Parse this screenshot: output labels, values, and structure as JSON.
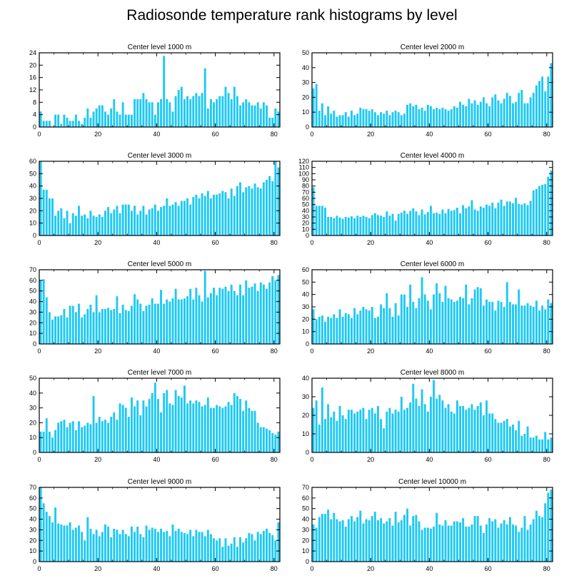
{
  "figure": {
    "title": "Radiosonde temperature rank histograms by level",
    "bar_color": "#1ec8f5"
  },
  "chart_data": [
    {
      "type": "bar",
      "title": "Center level 1000 m",
      "xlim": [
        0,
        82
      ],
      "ylim": [
        0,
        24
      ],
      "xticks": [
        0,
        20,
        40,
        60,
        80
      ],
      "yticks": [
        0,
        4,
        8,
        12,
        16,
        20,
        24
      ],
      "values": [
        5,
        2,
        2,
        2,
        0,
        4,
        4,
        1,
        4,
        3,
        2,
        2,
        4,
        2,
        1,
        3,
        6,
        3,
        5,
        6,
        7,
        7,
        5,
        4,
        6,
        9,
        5,
        4,
        8,
        4,
        4,
        4,
        9,
        9,
        9,
        11,
        9,
        8,
        8,
        4,
        8,
        9,
        23,
        9,
        8,
        5,
        10,
        12,
        13,
        9,
        10,
        9,
        10,
        11,
        10,
        11,
        19,
        6,
        9,
        8,
        9,
        10,
        10,
        13,
        11,
        9,
        13,
        10,
        7,
        8,
        9,
        8,
        7,
        7,
        8,
        6,
        8,
        7,
        3,
        3,
        6,
        5
      ]
    },
    {
      "type": "bar",
      "title": "Center level 2000 m",
      "xlim": [
        0,
        82
      ],
      "ylim": [
        0,
        50
      ],
      "xticks": [
        0,
        20,
        40,
        60,
        80
      ],
      "yticks": [
        0,
        10,
        20,
        30,
        40,
        50
      ],
      "values": [
        26,
        29,
        11,
        16,
        8,
        14,
        9,
        11,
        7,
        8,
        8,
        10,
        7,
        11,
        8,
        9,
        13,
        12,
        12,
        11,
        12,
        10,
        8,
        10,
        9,
        11,
        8,
        10,
        11,
        10,
        8,
        9,
        15,
        16,
        14,
        15,
        12,
        13,
        11,
        15,
        14,
        12,
        13,
        12,
        13,
        12,
        11,
        12,
        14,
        13,
        17,
        15,
        14,
        19,
        16,
        18,
        15,
        17,
        20,
        16,
        14,
        20,
        22,
        18,
        16,
        19,
        23,
        21,
        16,
        17,
        23,
        25,
        16,
        16,
        20,
        23,
        28,
        31,
        34,
        24,
        34,
        43
      ]
    },
    {
      "type": "bar",
      "title": "Center level 3000 m",
      "xlim": [
        0,
        82
      ],
      "ylim": [
        0,
        60
      ],
      "xticks": [
        0,
        20,
        40,
        60,
        80
      ],
      "yticks": [
        0,
        10,
        20,
        30,
        40,
        50,
        60
      ],
      "values": [
        60,
        37,
        37,
        30,
        30,
        16,
        20,
        22,
        14,
        20,
        10,
        18,
        16,
        24,
        16,
        17,
        14,
        20,
        16,
        15,
        17,
        15,
        20,
        23,
        18,
        21,
        24,
        18,
        25,
        25,
        25,
        20,
        24,
        17,
        20,
        24,
        17,
        21,
        22,
        25,
        20,
        23,
        24,
        30,
        24,
        25,
        27,
        24,
        28,
        28,
        30,
        25,
        31,
        33,
        30,
        34,
        32,
        36,
        30,
        33,
        33,
        34,
        36,
        35,
        30,
        38,
        32,
        40,
        43,
        35,
        39,
        40,
        38,
        42,
        39,
        38,
        43,
        45,
        48,
        44,
        60,
        55
      ]
    },
    {
      "type": "bar",
      "title": "Center level 4000 m",
      "xlim": [
        0,
        82
      ],
      "ylim": [
        0,
        120
      ],
      "xticks": [
        0,
        20,
        40,
        60,
        80
      ],
      "yticks": [
        0,
        10,
        20,
        30,
        40,
        50,
        60,
        70,
        80,
        90,
        100,
        110,
        120
      ],
      "values": [
        78,
        48,
        48,
        48,
        45,
        30,
        30,
        28,
        32,
        29,
        27,
        30,
        29,
        31,
        28,
        32,
        30,
        32,
        30,
        28,
        33,
        36,
        33,
        32,
        30,
        39,
        32,
        35,
        24,
        35,
        37,
        40,
        35,
        40,
        44,
        39,
        33,
        42,
        34,
        38,
        48,
        36,
        37,
        35,
        42,
        36,
        43,
        40,
        41,
        45,
        36,
        49,
        44,
        47,
        57,
        42,
        40,
        47,
        45,
        50,
        48,
        53,
        44,
        53,
        58,
        48,
        55,
        55,
        52,
        61,
        51,
        50,
        52,
        49,
        56,
        73,
        75,
        80,
        82,
        83,
        95,
        105
      ]
    },
    {
      "type": "bar",
      "title": "Center level 5000 m",
      "xlim": [
        0,
        82
      ],
      "ylim": [
        0,
        70
      ],
      "xticks": [
        0,
        20,
        40,
        60,
        80
      ],
      "yticks": [
        0,
        10,
        20,
        30,
        40,
        50,
        60,
        70
      ],
      "values": [
        60,
        61,
        44,
        30,
        23,
        26,
        26,
        27,
        33,
        25,
        36,
        36,
        30,
        38,
        25,
        28,
        33,
        37,
        30,
        46,
        30,
        33,
        33,
        34,
        32,
        33,
        45,
        29,
        37,
        32,
        31,
        36,
        47,
        42,
        38,
        31,
        36,
        37,
        43,
        38,
        38,
        51,
        38,
        42,
        40,
        43,
        52,
        42,
        42,
        43,
        45,
        52,
        42,
        53,
        46,
        40,
        69,
        44,
        48,
        53,
        46,
        53,
        52,
        54,
        50,
        56,
        50,
        46,
        56,
        46,
        60,
        53,
        54,
        57,
        50,
        58,
        56,
        52,
        58,
        64,
        60,
        65
      ]
    },
    {
      "type": "bar",
      "title": "Center level 6000 m",
      "xlim": [
        0,
        82
      ],
      "ylim": [
        0,
        60
      ],
      "xticks": [
        0,
        20,
        40,
        60,
        80
      ],
      "yticks": [
        0,
        10,
        20,
        30,
        40,
        50,
        60
      ],
      "values": [
        28,
        20,
        22,
        23,
        18,
        22,
        21,
        24,
        21,
        28,
        22,
        25,
        24,
        21,
        29,
        24,
        27,
        30,
        28,
        27,
        30,
        21,
        22,
        32,
        29,
        41,
        29,
        22,
        33,
        23,
        40,
        40,
        30,
        48,
        34,
        29,
        37,
        54,
        40,
        35,
        28,
        40,
        49,
        41,
        34,
        47,
        37,
        36,
        34,
        35,
        38,
        37,
        48,
        32,
        37,
        44,
        46,
        45,
        31,
        36,
        34,
        34,
        27,
        35,
        34,
        30,
        50,
        34,
        32,
        32,
        44,
        31,
        31,
        33,
        31,
        30,
        35,
        27,
        31,
        28,
        36,
        33
      ]
    },
    {
      "type": "bar",
      "title": "Center level 7000 m",
      "xlim": [
        0,
        82
      ],
      "ylim": [
        0,
        50
      ],
      "xticks": [
        0,
        20,
        40,
        60,
        80
      ],
      "yticks": [
        0,
        10,
        20,
        30,
        40,
        50
      ],
      "values": [
        14,
        14,
        23,
        14,
        10,
        15,
        20,
        21,
        22,
        17,
        20,
        21,
        15,
        21,
        17,
        18,
        20,
        19,
        38,
        20,
        24,
        21,
        22,
        20,
        24,
        27,
        22,
        33,
        32,
        30,
        24,
        37,
        31,
        35,
        25,
        35,
        31,
        36,
        40,
        47,
        36,
        27,
        40,
        42,
        33,
        32,
        42,
        38,
        37,
        45,
        33,
        35,
        33,
        35,
        34,
        31,
        32,
        37,
        30,
        30,
        32,
        31,
        30,
        31,
        34,
        32,
        40,
        38,
        36,
        28,
        35,
        30,
        28,
        28,
        20,
        17,
        17,
        16,
        15,
        13,
        12,
        14
      ]
    },
    {
      "type": "bar",
      "title": "Center level 8000 m",
      "xlim": [
        0,
        82
      ],
      "ylim": [
        0,
        40
      ],
      "xticks": [
        0,
        20,
        40,
        60,
        80
      ],
      "yticks": [
        0,
        10,
        20,
        30,
        40
      ],
      "values": [
        24,
        28,
        15,
        35,
        18,
        26,
        19,
        22,
        17,
        25,
        20,
        18,
        23,
        23,
        21,
        22,
        23,
        24,
        18,
        23,
        24,
        21,
        25,
        18,
        13,
        22,
        24,
        21,
        23,
        22,
        30,
        23,
        24,
        27,
        37,
        29,
        25,
        34,
        26,
        22,
        30,
        39,
        29,
        31,
        28,
        24,
        26,
        22,
        21,
        28,
        25,
        25,
        23,
        24,
        26,
        23,
        25,
        27,
        20,
        28,
        21,
        21,
        18,
        16,
        16,
        17,
        18,
        14,
        15,
        12,
        17,
        9,
        10,
        14,
        8,
        8,
        9,
        7,
        7,
        11,
        7,
        8
      ]
    },
    {
      "type": "bar",
      "title": "Center level 9000 m",
      "xlim": [
        0,
        82
      ],
      "ylim": [
        0,
        70
      ],
      "xticks": [
        0,
        20,
        40,
        60,
        80
      ],
      "yticks": [
        0,
        10,
        20,
        30,
        40,
        50,
        60,
        70
      ],
      "values": [
        70,
        55,
        47,
        43,
        37,
        51,
        36,
        35,
        34,
        34,
        37,
        30,
        32,
        34,
        28,
        20,
        42,
        31,
        26,
        30,
        24,
        28,
        35,
        33,
        23,
        31,
        30,
        26,
        30,
        26,
        24,
        33,
        28,
        33,
        26,
        23,
        34,
        30,
        32,
        31,
        28,
        31,
        28,
        29,
        24,
        35,
        29,
        31,
        28,
        27,
        26,
        30,
        24,
        30,
        28,
        28,
        24,
        30,
        26,
        22,
        20,
        22,
        14,
        22,
        15,
        17,
        23,
        14,
        23,
        18,
        22,
        27,
        26,
        20,
        28,
        26,
        29,
        31,
        27,
        25,
        20,
        37
      ]
    },
    {
      "type": "bar",
      "title": "Center level 10000 m",
      "xlim": [
        0,
        82
      ],
      "ylim": [
        0,
        70
      ],
      "xticks": [
        0,
        20,
        40,
        60,
        80
      ],
      "yticks": [
        0,
        10,
        20,
        30,
        40,
        50,
        60,
        70
      ],
      "values": [
        35,
        32,
        42,
        45,
        45,
        49,
        40,
        46,
        40,
        38,
        39,
        33,
        40,
        43,
        38,
        42,
        48,
        36,
        40,
        39,
        43,
        47,
        39,
        41,
        36,
        38,
        41,
        34,
        47,
        37,
        39,
        44,
        50,
        34,
        43,
        44,
        38,
        30,
        32,
        32,
        31,
        33,
        46,
        35,
        34,
        39,
        34,
        34,
        38,
        38,
        37,
        41,
        33,
        33,
        35,
        43,
        43,
        34,
        27,
        35,
        41,
        38,
        40,
        32,
        36,
        39,
        35,
        42,
        35,
        34,
        28,
        32,
        43,
        30,
        35,
        40,
        48,
        43,
        42,
        55,
        65,
        68
      ]
    }
  ]
}
